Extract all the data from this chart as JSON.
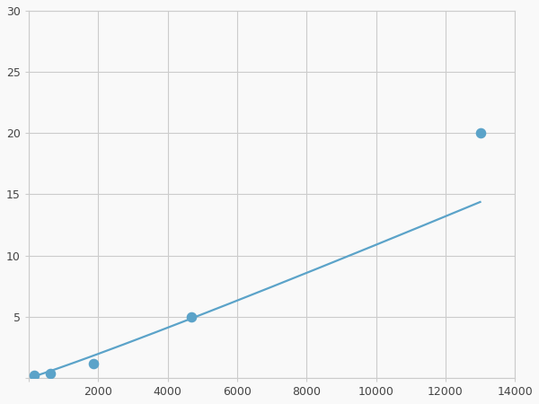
{
  "x": [
    156,
    625,
    1875,
    4688,
    13000
  ],
  "y": [
    0.2,
    0.4,
    1.2,
    5.0,
    20.0
  ],
  "line_color": "#5ba3c9",
  "marker_color": "#5ba3c9",
  "marker_size": 6,
  "line_width": 1.6,
  "xlim": [
    0,
    14000
  ],
  "ylim": [
    0,
    30
  ],
  "xticks": [
    0,
    2000,
    4000,
    6000,
    8000,
    10000,
    12000,
    14000
  ],
  "yticks": [
    0,
    5,
    10,
    15,
    20,
    25,
    30
  ],
  "grid_color": "#cccccc",
  "background_color": "#f9f9f9",
  "spine_color": "#cccccc"
}
